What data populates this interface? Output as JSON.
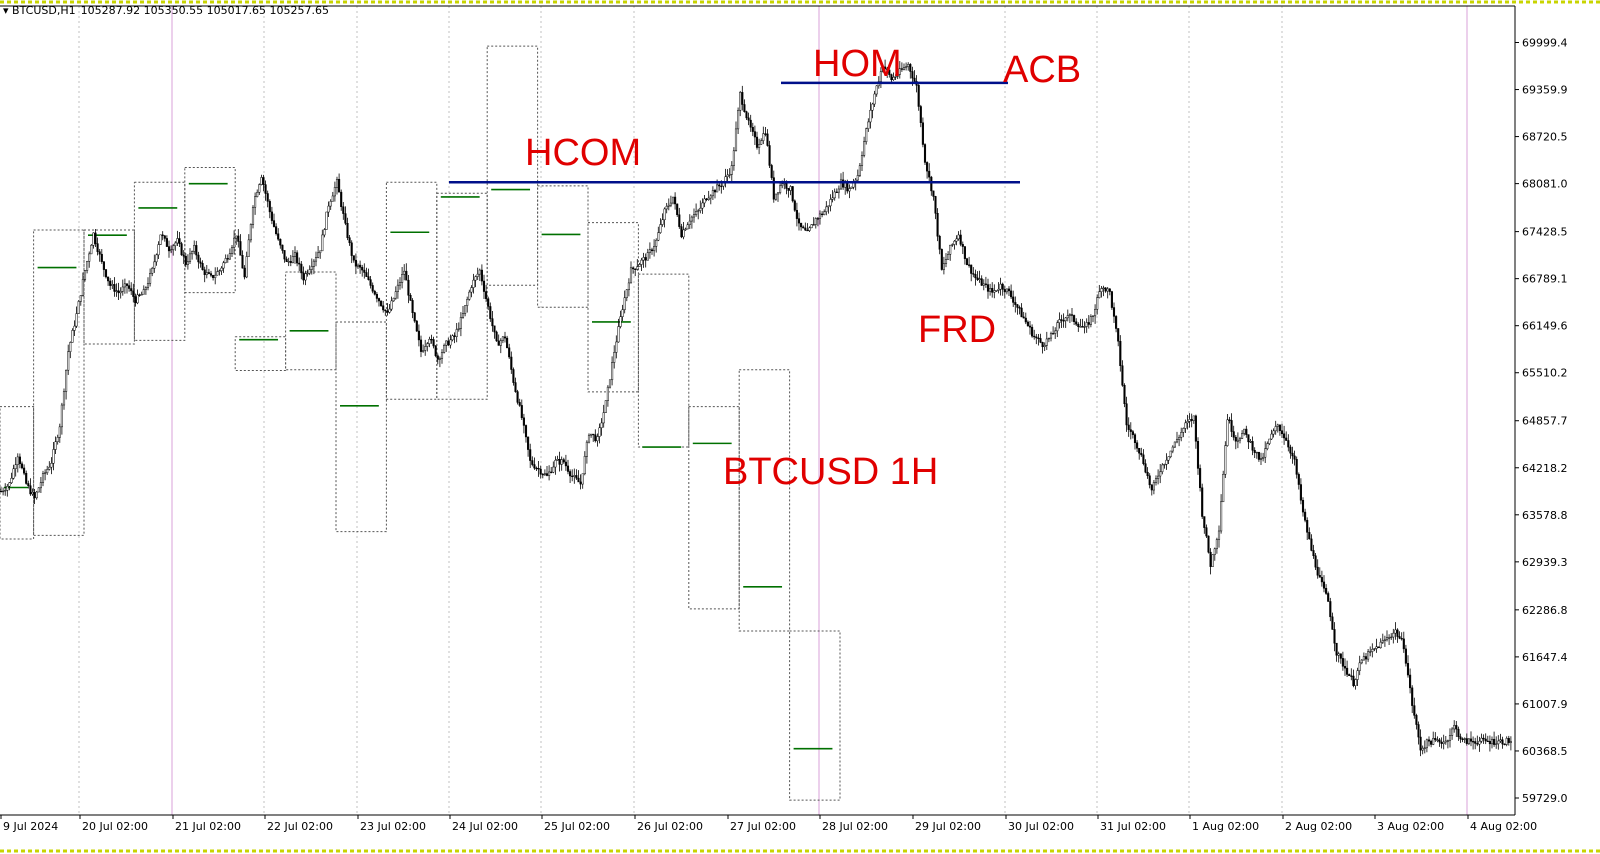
{
  "header": {
    "symbol": "BTCUSD,H1",
    "ohlc": "105287.92 105350.55 105017.65 105257.65"
  },
  "chart_data": {
    "type": "candlestick",
    "symbol": "BTCUSD",
    "timeframe": "H1",
    "ylim": [
      59500,
      70300
    ],
    "y_ticks": [
      69999.4,
      69359.9,
      68720.5,
      68081.0,
      67428.5,
      66789.1,
      66149.6,
      65510.2,
      64857.7,
      64218.2,
      63578.8,
      62939.3,
      62286.8,
      61647.4,
      61007.9,
      60368.5,
      59729.0
    ],
    "x_ticks": [
      "9 Jul 2024",
      "20 Jul 02:00",
      "21 Jul 02:00",
      "22 Jul 02:00",
      "23 Jul 02:00",
      "24 Jul 02:00",
      "25 Jul 02:00",
      "26 Jul 02:00",
      "27 Jul 02:00",
      "28 Jul 02:00",
      "29 Jul 02:00",
      "30 Jul 02:00",
      "31 Jul 02:00",
      "1 Aug 02:00",
      "2 Aug 02:00",
      "3 Aug 02:00",
      "4 Aug 02:00"
    ],
    "grid": true,
    "price_path": [
      [
        0,
        63900
      ],
      [
        4,
        64000
      ],
      [
        8,
        64400
      ],
      [
        12,
        64000
      ],
      [
        16,
        63800
      ],
      [
        20,
        64100
      ],
      [
        24,
        64300
      ],
      [
        28,
        64800
      ],
      [
        32,
        65800
      ],
      [
        36,
        66300
      ],
      [
        40,
        66900
      ],
      [
        44,
        67400
      ],
      [
        48,
        67000
      ],
      [
        52,
        66700
      ],
      [
        56,
        66600
      ],
      [
        60,
        66700
      ],
      [
        64,
        66500
      ],
      [
        68,
        66600
      ],
      [
        72,
        66900
      ],
      [
        76,
        67400
      ],
      [
        80,
        67200
      ],
      [
        84,
        67300
      ],
      [
        88,
        67000
      ],
      [
        92,
        67200
      ],
      [
        96,
        66900
      ],
      [
        100,
        66800
      ],
      [
        104,
        66900
      ],
      [
        108,
        67100
      ],
      [
        112,
        67400
      ],
      [
        116,
        66800
      ],
      [
        120,
        67800
      ],
      [
        124,
        68200
      ],
      [
        128,
        67700
      ],
      [
        132,
        67300
      ],
      [
        136,
        67000
      ],
      [
        140,
        67100
      ],
      [
        144,
        66800
      ],
      [
        148,
        67000
      ],
      [
        152,
        67200
      ],
      [
        156,
        67800
      ],
      [
        160,
        68100
      ],
      [
        164,
        67500
      ],
      [
        168,
        67000
      ],
      [
        172,
        66900
      ],
      [
        176,
        66700
      ],
      [
        180,
        66500
      ],
      [
        184,
        66300
      ],
      [
        188,
        66600
      ],
      [
        192,
        66900
      ],
      [
        196,
        66300
      ],
      [
        200,
        65800
      ],
      [
        204,
        66000
      ],
      [
        208,
        65700
      ],
      [
        212,
        65900
      ],
      [
        216,
        66000
      ],
      [
        220,
        66300
      ],
      [
        224,
        66700
      ],
      [
        228,
        66900
      ],
      [
        232,
        66400
      ],
      [
        236,
        65900
      ],
      [
        240,
        66000
      ],
      [
        244,
        65400
      ],
      [
        248,
        64900
      ],
      [
        252,
        64300
      ],
      [
        256,
        64200
      ],
      [
        260,
        64100
      ],
      [
        264,
        64300
      ],
      [
        268,
        64300
      ],
      [
        272,
        64100
      ],
      [
        276,
        64000
      ],
      [
        280,
        64700
      ],
      [
        284,
        64600
      ],
      [
        288,
        65100
      ],
      [
        292,
        65800
      ],
      [
        296,
        66400
      ],
      [
        300,
        66900
      ],
      [
        304,
        67000
      ],
      [
        308,
        67100
      ],
      [
        312,
        67300
      ],
      [
        316,
        67700
      ],
      [
        320,
        67900
      ],
      [
        324,
        67400
      ],
      [
        328,
        67600
      ],
      [
        332,
        67700
      ],
      [
        336,
        67900
      ],
      [
        340,
        68000
      ],
      [
        344,
        68100
      ],
      [
        348,
        68300
      ],
      [
        352,
        69300
      ],
      [
        356,
        68900
      ],
      [
        360,
        68600
      ],
      [
        364,
        68800
      ],
      [
        368,
        67900
      ],
      [
        372,
        68100
      ],
      [
        376,
        68000
      ],
      [
        380,
        67500
      ],
      [
        384,
        67400
      ],
      [
        388,
        67600
      ],
      [
        392,
        67700
      ],
      [
        396,
        67900
      ],
      [
        400,
        68100
      ],
      [
        404,
        68000
      ],
      [
        408,
        68200
      ],
      [
        412,
        68800
      ],
      [
        416,
        69300
      ],
      [
        420,
        69700
      ],
      [
        424,
        69500
      ],
      [
        428,
        69600
      ],
      [
        432,
        69700
      ],
      [
        436,
        69400
      ],
      [
        440,
        68400
      ],
      [
        444,
        67900
      ],
      [
        448,
        66900
      ],
      [
        452,
        67200
      ],
      [
        456,
        67400
      ],
      [
        460,
        67000
      ],
      [
        464,
        66800
      ],
      [
        468,
        66700
      ],
      [
        472,
        66600
      ],
      [
        476,
        66700
      ],
      [
        480,
        66600
      ],
      [
        484,
        66400
      ],
      [
        488,
        66200
      ],
      [
        492,
        66000
      ],
      [
        496,
        65900
      ],
      [
        500,
        66000
      ],
      [
        504,
        66200
      ],
      [
        508,
        66300
      ],
      [
        512,
        66200
      ],
      [
        516,
        66100
      ],
      [
        520,
        66300
      ],
      [
        524,
        66700
      ],
      [
        528,
        66600
      ],
      [
        532,
        65900
      ],
      [
        536,
        64800
      ],
      [
        540,
        64600
      ],
      [
        544,
        64300
      ],
      [
        548,
        63900
      ],
      [
        552,
        64200
      ],
      [
        556,
        64400
      ],
      [
        560,
        64600
      ],
      [
        564,
        64800
      ],
      [
        568,
        64900
      ],
      [
        572,
        63600
      ],
      [
        576,
        62900
      ],
      [
        580,
        63400
      ],
      [
        584,
        64900
      ],
      [
        588,
        64600
      ],
      [
        592,
        64700
      ],
      [
        596,
        64500
      ],
      [
        600,
        64300
      ],
      [
        604,
        64600
      ],
      [
        608,
        64800
      ],
      [
        612,
        64600
      ],
      [
        616,
        64300
      ],
      [
        620,
        63600
      ],
      [
        624,
        63100
      ],
      [
        628,
        62700
      ],
      [
        632,
        62400
      ],
      [
        636,
        61700
      ],
      [
        640,
        61500
      ],
      [
        644,
        61300
      ],
      [
        648,
        61600
      ],
      [
        652,
        61700
      ],
      [
        656,
        61800
      ],
      [
        660,
        61900
      ],
      [
        664,
        62000
      ],
      [
        668,
        61800
      ],
      [
        672,
        61000
      ],
      [
        676,
        60400
      ],
      [
        680,
        60500
      ],
      [
        684,
        60500
      ],
      [
        688,
        60500
      ],
      [
        692,
        60700
      ],
      [
        696,
        60500
      ],
      [
        700,
        60500
      ]
    ],
    "day_levels": [
      {
        "start": 0,
        "end": 16,
        "high": 65050,
        "low": 63250,
        "mid": 63950
      },
      {
        "start": 16,
        "end": 40,
        "high": 67450,
        "low": 63300,
        "mid": 66940
      },
      {
        "start": 40,
        "end": 64,
        "high": 67450,
        "low": 65900,
        "mid": 67380
      },
      {
        "start": 64,
        "end": 88,
        "high": 68100,
        "low": 65950,
        "mid": 67750
      },
      {
        "start": 88,
        "end": 112,
        "high": 68300,
        "low": 66600,
        "mid": 68080
      },
      {
        "start": 112,
        "end": 136,
        "high": 66000,
        "low": 65540,
        "mid": 65960
      },
      {
        "start": 136,
        "end": 160,
        "high": 66880,
        "low": 65550,
        "mid": 66080
      },
      {
        "start": 160,
        "end": 184,
        "high": 66200,
        "low": 63350,
        "mid": 65060
      },
      {
        "start": 184,
        "end": 208,
        "high": 68100,
        "low": 65150,
        "mid": 67420
      },
      {
        "start": 208,
        "end": 232,
        "high": 67950,
        "low": 65150,
        "mid": 67900
      },
      {
        "start": 232,
        "end": 256,
        "high": 69950,
        "low": 66700,
        "mid": 68000
      },
      {
        "start": 256,
        "end": 280,
        "high": 68050,
        "low": 66400,
        "mid": 67390
      },
      {
        "start": 280,
        "end": 304,
        "high": 67550,
        "low": 65250,
        "mid": 66200
      },
      {
        "start": 304,
        "end": 328,
        "high": 66850,
        "low": 64500,
        "mid": 64500
      },
      {
        "start": 328,
        "end": 352,
        "high": 65050,
        "low": 62300,
        "mid": 64550
      },
      {
        "start": 352,
        "end": 376,
        "high": 65550,
        "low": 62000,
        "mid": 62600
      },
      {
        "start": 376,
        "end": 400,
        "high": 62000,
        "low": 59700,
        "mid": 60400
      }
    ],
    "blue_levels": [
      {
        "label": "HCOM",
        "price": 68100
      },
      {
        "label": "HOM",
        "price": 69450
      }
    ],
    "annotations": [
      "HOM",
      "ACB",
      "HCOM",
      "FRD",
      "BTCUSD 1H"
    ]
  },
  "colors": {
    "candle": "#000000",
    "day_mid_line": "#007000",
    "blue_line": "#00108a",
    "annotation_text": "#e00000",
    "border_dash": "#c8d400",
    "grid": "#c0c0c0",
    "day_separator": "#d9a0d9"
  }
}
